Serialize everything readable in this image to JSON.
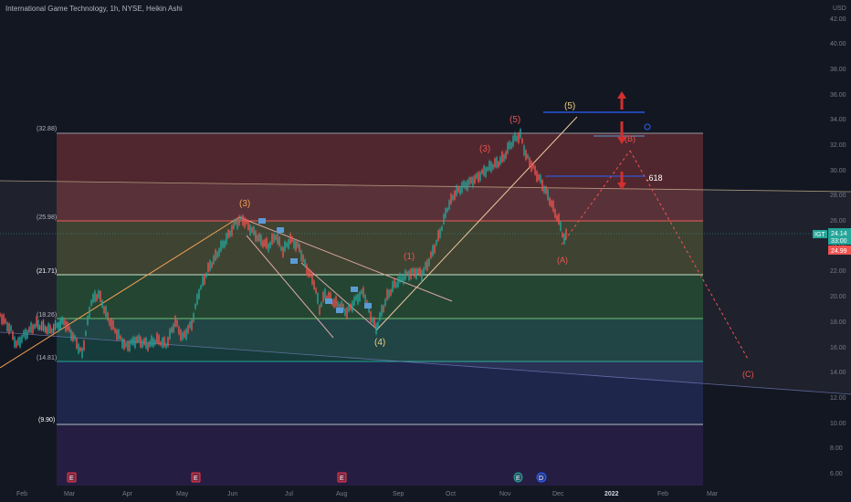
{
  "header": {
    "symbol_title": "International Game Technology, 1h, NYSE, Heikin Ashi",
    "currency": "USD"
  },
  "price_axis": {
    "ticks": [
      "42.00",
      "40.00",
      "38.00",
      "36.00",
      "34.00",
      "32.00",
      "30.00",
      "28.00",
      "26.00",
      "24.00",
      "22.00",
      "20.00",
      "18.00",
      "16.00",
      "14.00",
      "12.00",
      "10.00",
      "8.00",
      "6.00"
    ]
  },
  "price_badges": {
    "symbol_badge": "IGT",
    "last_price": "24.14",
    "countdown": "33:00",
    "low_price": "24.99",
    "colors": {
      "badge": "#26a69a",
      "low": "#ef5350"
    }
  },
  "time_axis": {
    "ticks": [
      "Feb",
      "Mar",
      "Apr",
      "May",
      "Jun",
      "Jul",
      "Aug",
      "Sep",
      "Oct",
      "Nov",
      "Dec",
      "2022",
      "Feb",
      "Mar"
    ]
  },
  "fib_levels": {
    "labels": [
      "(32.88)",
      "(25.98)",
      "(21.71)",
      "(18.26)",
      "(14.81)",
      "(9.90)"
    ],
    "ratio_label": ".618"
  },
  "wave_labels": {
    "wave_3": "(3)",
    "wave_4": "(4)",
    "wave_5_target": "(5)",
    "wave_5_red": "(5)",
    "sub_3": "(3)",
    "sub_1": "(1)",
    "wave_A": "(A)",
    "wave_B": "(B)",
    "wave_C": "(C)"
  },
  "event_markers": [
    "E",
    "E",
    "E",
    "E",
    "D"
  ],
  "colors": {
    "background": "#131722",
    "up_candle": "#26a69a",
    "down_candle": "#ef5350",
    "wave_orange": "#f0a050",
    "wave_red": "#ef5350",
    "arrow_red": "#d32f2f",
    "line_blue": "#2962ff",
    "box_blue": "#5b9bd5",
    "text_gray": "#787b86"
  },
  "icons": {
    "earnings": "earnings-e-icon",
    "dividend": "dividend-d-icon",
    "arrow_up": "arrow-up-icon",
    "arrow_down": "arrow-down-icon",
    "timer": "timer-icon"
  }
}
